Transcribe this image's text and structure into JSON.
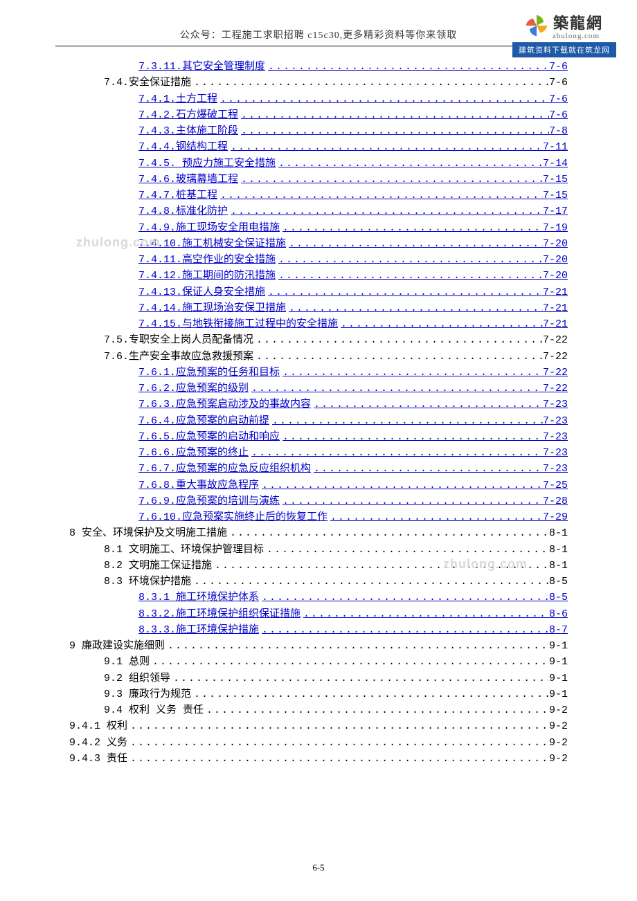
{
  "header": {
    "line": "公众号：工程施工求职招聘 c15c30,更多精彩资料等你来领取"
  },
  "logo": {
    "cn": "築龍網",
    "en": "zhulong.com",
    "banner": "建筑资料下载就在筑龙网",
    "colors": {
      "green": "#7ab51d",
      "yellow": "#f5a623",
      "blue": "#3b7dd8",
      "red": "#e85c41"
    }
  },
  "watermark": "zhulong.com",
  "footer": "6-5",
  "toc": [
    {
      "indent": 2,
      "link": true,
      "label": "7.3.11.其它安全管理制度",
      "page": "7-6"
    },
    {
      "indent": 1,
      "link": false,
      "label": "7.4.安全保证措施",
      "page": "7-6"
    },
    {
      "indent": 2,
      "link": true,
      "label": "7.4.1.土方工程",
      "page": "7-6"
    },
    {
      "indent": 2,
      "link": true,
      "label": "7.4.2.石方爆破工程",
      "page": "7-6"
    },
    {
      "indent": 2,
      "link": true,
      "label": "7.4.3.主体施工阶段",
      "page": "7-8"
    },
    {
      "indent": 2,
      "link": true,
      "label": "7.4.4.钢结构工程",
      "page": "7-11"
    },
    {
      "indent": 2,
      "link": true,
      "label": "7.4.5. 预应力施工安全措施",
      "page": "7-14"
    },
    {
      "indent": 2,
      "link": true,
      "label": "7.4.6.玻璃幕墙工程",
      "page": "7-15"
    },
    {
      "indent": 2,
      "link": true,
      "label": "7.4.7.桩基工程",
      "page": "7-15"
    },
    {
      "indent": 2,
      "link": true,
      "label": "7.4.8.标准化防护",
      "page": "7-17"
    },
    {
      "indent": 2,
      "link": true,
      "label": "7.4.9.施工现场安全用电措施",
      "page": "7-19"
    },
    {
      "indent": 2,
      "link": true,
      "label": "7.4.10.施工机械安全保证措施",
      "page": "7-20"
    },
    {
      "indent": 2,
      "link": true,
      "label": "7.4.11.高空作业的安全措施",
      "page": "7-20"
    },
    {
      "indent": 2,
      "link": true,
      "label": "7.4.12.施工期间的防汛措施",
      "page": "7-20"
    },
    {
      "indent": 2,
      "link": true,
      "label": "7.4.13.保证人身安全措施",
      "page": "7-21"
    },
    {
      "indent": 2,
      "link": true,
      "label": "7.4.14.施工现场治安保卫措施",
      "page": "7-21"
    },
    {
      "indent": 2,
      "link": true,
      "label": "7.4.15.与地铁衔接施工过程中的安全措施",
      "page": "7-21"
    },
    {
      "indent": 1,
      "link": false,
      "label": "7.5.专职安全上岗人员配备情况",
      "page": "7-22"
    },
    {
      "indent": 1,
      "link": false,
      "label": "7.6.生产安全事故应急救援预案",
      "page": "7-22"
    },
    {
      "indent": 2,
      "link": true,
      "label": "7.6.1.应急预案的任务和目标",
      "page": "7-22"
    },
    {
      "indent": 2,
      "link": true,
      "label": "7.6.2.应急预案的级别",
      "page": "7-22"
    },
    {
      "indent": 2,
      "link": true,
      "label": "7.6.3.应急预案启动涉及的事故内容",
      "page": "7-23"
    },
    {
      "indent": 2,
      "link": true,
      "label": "7.6.4.应急预案的启动前提",
      "page": "7-23"
    },
    {
      "indent": 2,
      "link": true,
      "label": "7.6.5.应急预案的启动和响应",
      "page": "7-23"
    },
    {
      "indent": 2,
      "link": true,
      "label": "7.6.6.应急预案的终止",
      "page": "7-23"
    },
    {
      "indent": 2,
      "link": true,
      "label": "7.6.7.应急预案的应急反应组织机构",
      "page": "7-23"
    },
    {
      "indent": 2,
      "link": true,
      "label": "7.6.8.重大事故应急程序",
      "page": "7-25"
    },
    {
      "indent": 2,
      "link": true,
      "label": "7.6.9.应急预案的培训与演练",
      "page": "7-28"
    },
    {
      "indent": 2,
      "link": true,
      "label": "7.6.10.应急预案实施终止后的恢复工作",
      "page": "7-29"
    },
    {
      "indent": 0,
      "link": false,
      "label": "8 安全、环境保护及文明施工措施",
      "page": "8-1"
    },
    {
      "indent": 1,
      "link": false,
      "label": "8.1 文明施工、环境保护管理目标",
      "page": "8-1"
    },
    {
      "indent": 1,
      "link": false,
      "label": "8.2 文明施工保证措施",
      "page": "8-1"
    },
    {
      "indent": 1,
      "link": false,
      "label": "8.3 环境保护措施",
      "page": "8-5"
    },
    {
      "indent": 2,
      "link": true,
      "label": "8.3.1 施工环境保护体系",
      "page": "8-5"
    },
    {
      "indent": 2,
      "link": true,
      "label": "8.3.2.施工环境保护组织保证措施",
      "page": "8-6"
    },
    {
      "indent": 2,
      "link": true,
      "label": "8.3.3.施工环境保护措施",
      "page": "8-7"
    },
    {
      "indent": 0,
      "link": false,
      "label": "9 廉政建设实施细则",
      "page": "9-1"
    },
    {
      "indent": 1,
      "link": false,
      "label": "9.1 总则",
      "page": "9-1"
    },
    {
      "indent": 1,
      "link": false,
      "label": "9.2 组织领导",
      "page": "9-1"
    },
    {
      "indent": 1,
      "link": false,
      "label": "9.3 廉政行为规范",
      "page": "9-1"
    },
    {
      "indent": 1,
      "link": false,
      "label": "9.4 权利  义务  责任",
      "page": "9-2"
    },
    {
      "indent": 0,
      "link": false,
      "label": "9.4.1 权利",
      "page": "9-2"
    },
    {
      "indent": 0,
      "link": false,
      "label": "9.4.2 义务",
      "page": "9-2"
    },
    {
      "indent": 0,
      "link": false,
      "label": "9.4.3 责任",
      "page": "9-2"
    }
  ]
}
